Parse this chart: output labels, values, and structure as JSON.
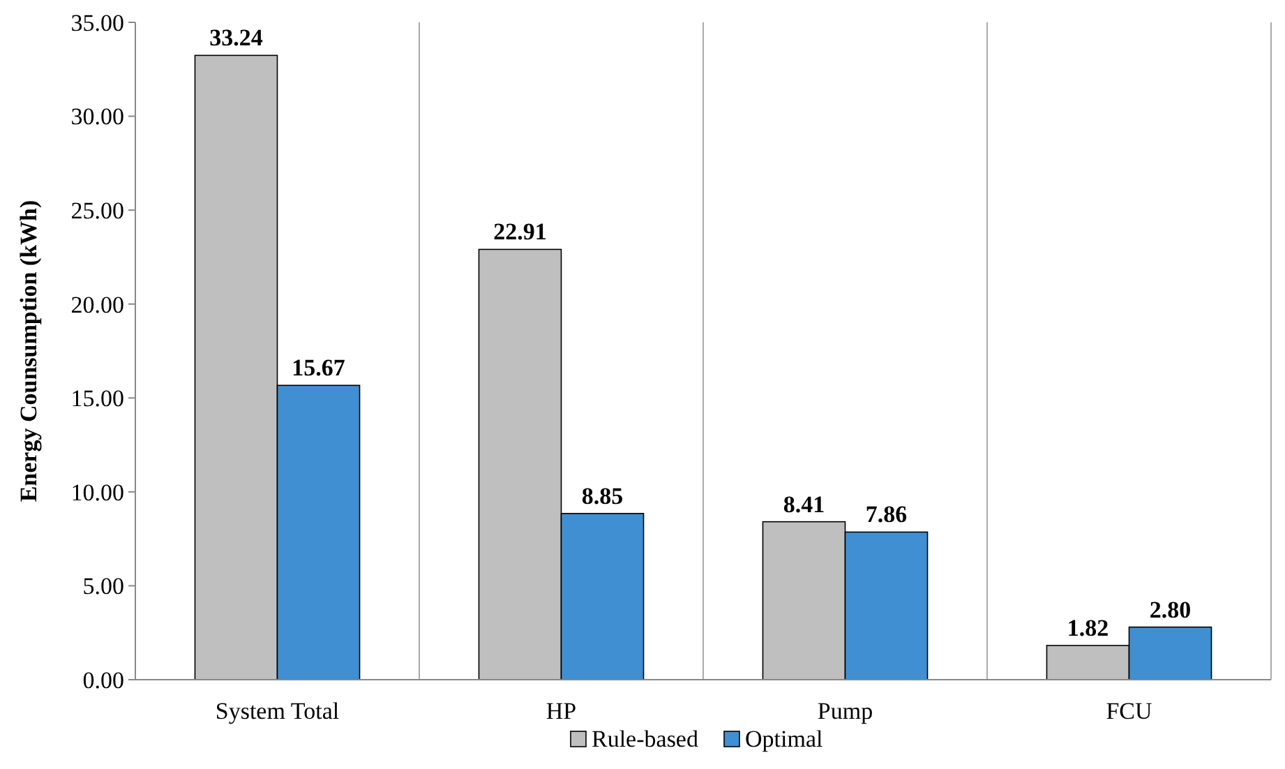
{
  "chart_data": {
    "type": "bar",
    "ylabel": "Energy Counsumption (kWh)",
    "categories": [
      "System Total",
      "HP",
      "Pump",
      "FCU"
    ],
    "series": [
      {
        "name": "Rule-based",
        "color": "#bfbfbf",
        "values": [
          33.24,
          22.91,
          8.41,
          1.82
        ]
      },
      {
        "name": "Optimal",
        "color": "#3f8fd2",
        "values": [
          15.67,
          8.85,
          7.86,
          2.8
        ]
      }
    ],
    "value_labels": [
      [
        "33.24",
        "22.91",
        "8.41",
        "1.82"
      ],
      [
        "15.67",
        "8.85",
        "7.86",
        "2.80"
      ]
    ],
    "ylim": [
      0,
      35
    ],
    "yticks": [
      {
        "value": 0,
        "label": "0.00"
      },
      {
        "value": 5,
        "label": "5.00"
      },
      {
        "value": 10,
        "label": "10.00"
      },
      {
        "value": 15,
        "label": "15.00"
      },
      {
        "value": 20,
        "label": "20.00"
      },
      {
        "value": 25,
        "label": "25.00"
      },
      {
        "value": 30,
        "label": "30.00"
      },
      {
        "value": 35,
        "label": "35.00"
      }
    ],
    "grid": "x",
    "legend": "bottom"
  }
}
